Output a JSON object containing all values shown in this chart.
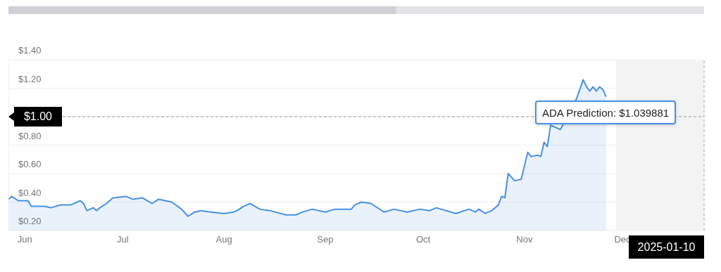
{
  "chart_data": {
    "type": "area",
    "x": [
      "--05-27",
      "--05-28",
      "--05-30",
      "--06-02",
      "--06-03",
      "--06-07",
      "--06-09",
      "--06-12",
      "--06-15",
      "--06-18",
      "--06-19",
      "--06-20",
      "--06-22",
      "--06-23",
      "--06-24",
      "--06-26",
      "--06-28",
      "--07-02",
      "--07-04",
      "--07-07",
      "--07-10",
      "--07-12",
      "--07-16",
      "--07-19",
      "--07-21",
      "--07-23",
      "--07-25",
      "--07-28",
      "--08-01",
      "--08-04",
      "--08-05",
      "--08-07",
      "--08-09",
      "--08-12",
      "--08-15",
      "--08-20",
      "--08-23",
      "--08-25",
      "--08-28",
      "--09-01",
      "--09-04",
      "--09-09",
      "--09-10",
      "--09-12",
      "--09-15",
      "--09-19",
      "--09-22",
      "--09-26",
      "--09-30",
      "--10-03",
      "--10-05",
      "--10-11",
      "--10-15",
      "--10-17",
      "--10-18",
      "--10-20",
      "--10-22",
      "--10-24",
      "--10-25",
      "--10-26",
      "--10-27",
      "--10-29",
      "--10-31",
      "--11-02",
      "--11-03",
      "--11-05",
      "--11-06",
      "--11-07",
      "--11-08",
      "--11-09",
      "--11-12",
      "--11-17",
      "--11-19",
      "--11-20",
      "--11-21",
      "--11-22",
      "--11-23",
      "--11-24",
      "--11-25",
      "--11-26"
    ],
    "series": [
      {
        "color": "#4a90e2",
        "values": [
          0.42,
          0.44,
          0.41,
          0.41,
          0.37,
          0.37,
          0.36,
          0.38,
          0.38,
          0.41,
          0.39,
          0.34,
          0.36,
          0.34,
          0.36,
          0.39,
          0.43,
          0.44,
          0.42,
          0.43,
          0.39,
          0.42,
          0.4,
          0.35,
          0.3,
          0.33,
          0.34,
          0.33,
          0.32,
          0.33,
          0.34,
          0.37,
          0.39,
          0.35,
          0.34,
          0.31,
          0.31,
          0.33,
          0.35,
          0.33,
          0.35,
          0.35,
          0.38,
          0.4,
          0.39,
          0.33,
          0.35,
          0.33,
          0.35,
          0.34,
          0.36,
          0.32,
          0.35,
          0.33,
          0.35,
          0.32,
          0.34,
          0.38,
          0.44,
          0.43,
          0.6,
          0.55,
          0.56,
          0.75,
          0.72,
          0.73,
          0.72,
          0.82,
          0.79,
          0.94,
          0.91,
          1.13,
          1.26,
          1.21,
          1.18,
          1.21,
          1.18,
          1.21,
          1.19,
          1.14
        ]
      }
    ],
    "xlim": [
      "--05-27",
      "--12-26"
    ],
    "xticks": [
      {
        "value": "--06-01",
        "label": "Jun"
      },
      {
        "value": "--07-01",
        "label": "Jul"
      },
      {
        "value": "--08-01",
        "label": "Aug"
      },
      {
        "value": "--09-01",
        "label": "Sep"
      },
      {
        "value": "--10-01",
        "label": "Oct"
      },
      {
        "value": "--11-01",
        "label": "Nov"
      },
      {
        "value": "--12-01",
        "label": "Dec"
      }
    ],
    "ylim": [
      0.2,
      1.4
    ],
    "yticks": [
      {
        "value": 0.2,
        "label": "$0.20"
      },
      {
        "value": 0.4,
        "label": "$0.40"
      },
      {
        "value": 0.6,
        "label": "$0.60"
      },
      {
        "value": 0.8,
        "label": "$0.80"
      },
      {
        "value": 1.0,
        "label": null
      },
      {
        "value": 1.2,
        "label": "$1.20"
      },
      {
        "value": 1.4,
        "label": "$1.40"
      }
    ],
    "grid": "y",
    "bands": [
      {
        "axis": "x",
        "from": "--11-29",
        "to": "--12-26",
        "color": "#f3f3f3"
      }
    ],
    "ref_lines": [
      {
        "axis": "y",
        "value": 1.0,
        "label": "$1.00",
        "line_style": "dashed",
        "color": "#999999"
      },
      {
        "axis": "x",
        "value": "--12-26",
        "line_style": "dashed",
        "color": "#aaaaaa"
      }
    ],
    "annotations": [
      "ADA Prediction: $1.039881",
      "2025-01-10"
    ]
  }
}
